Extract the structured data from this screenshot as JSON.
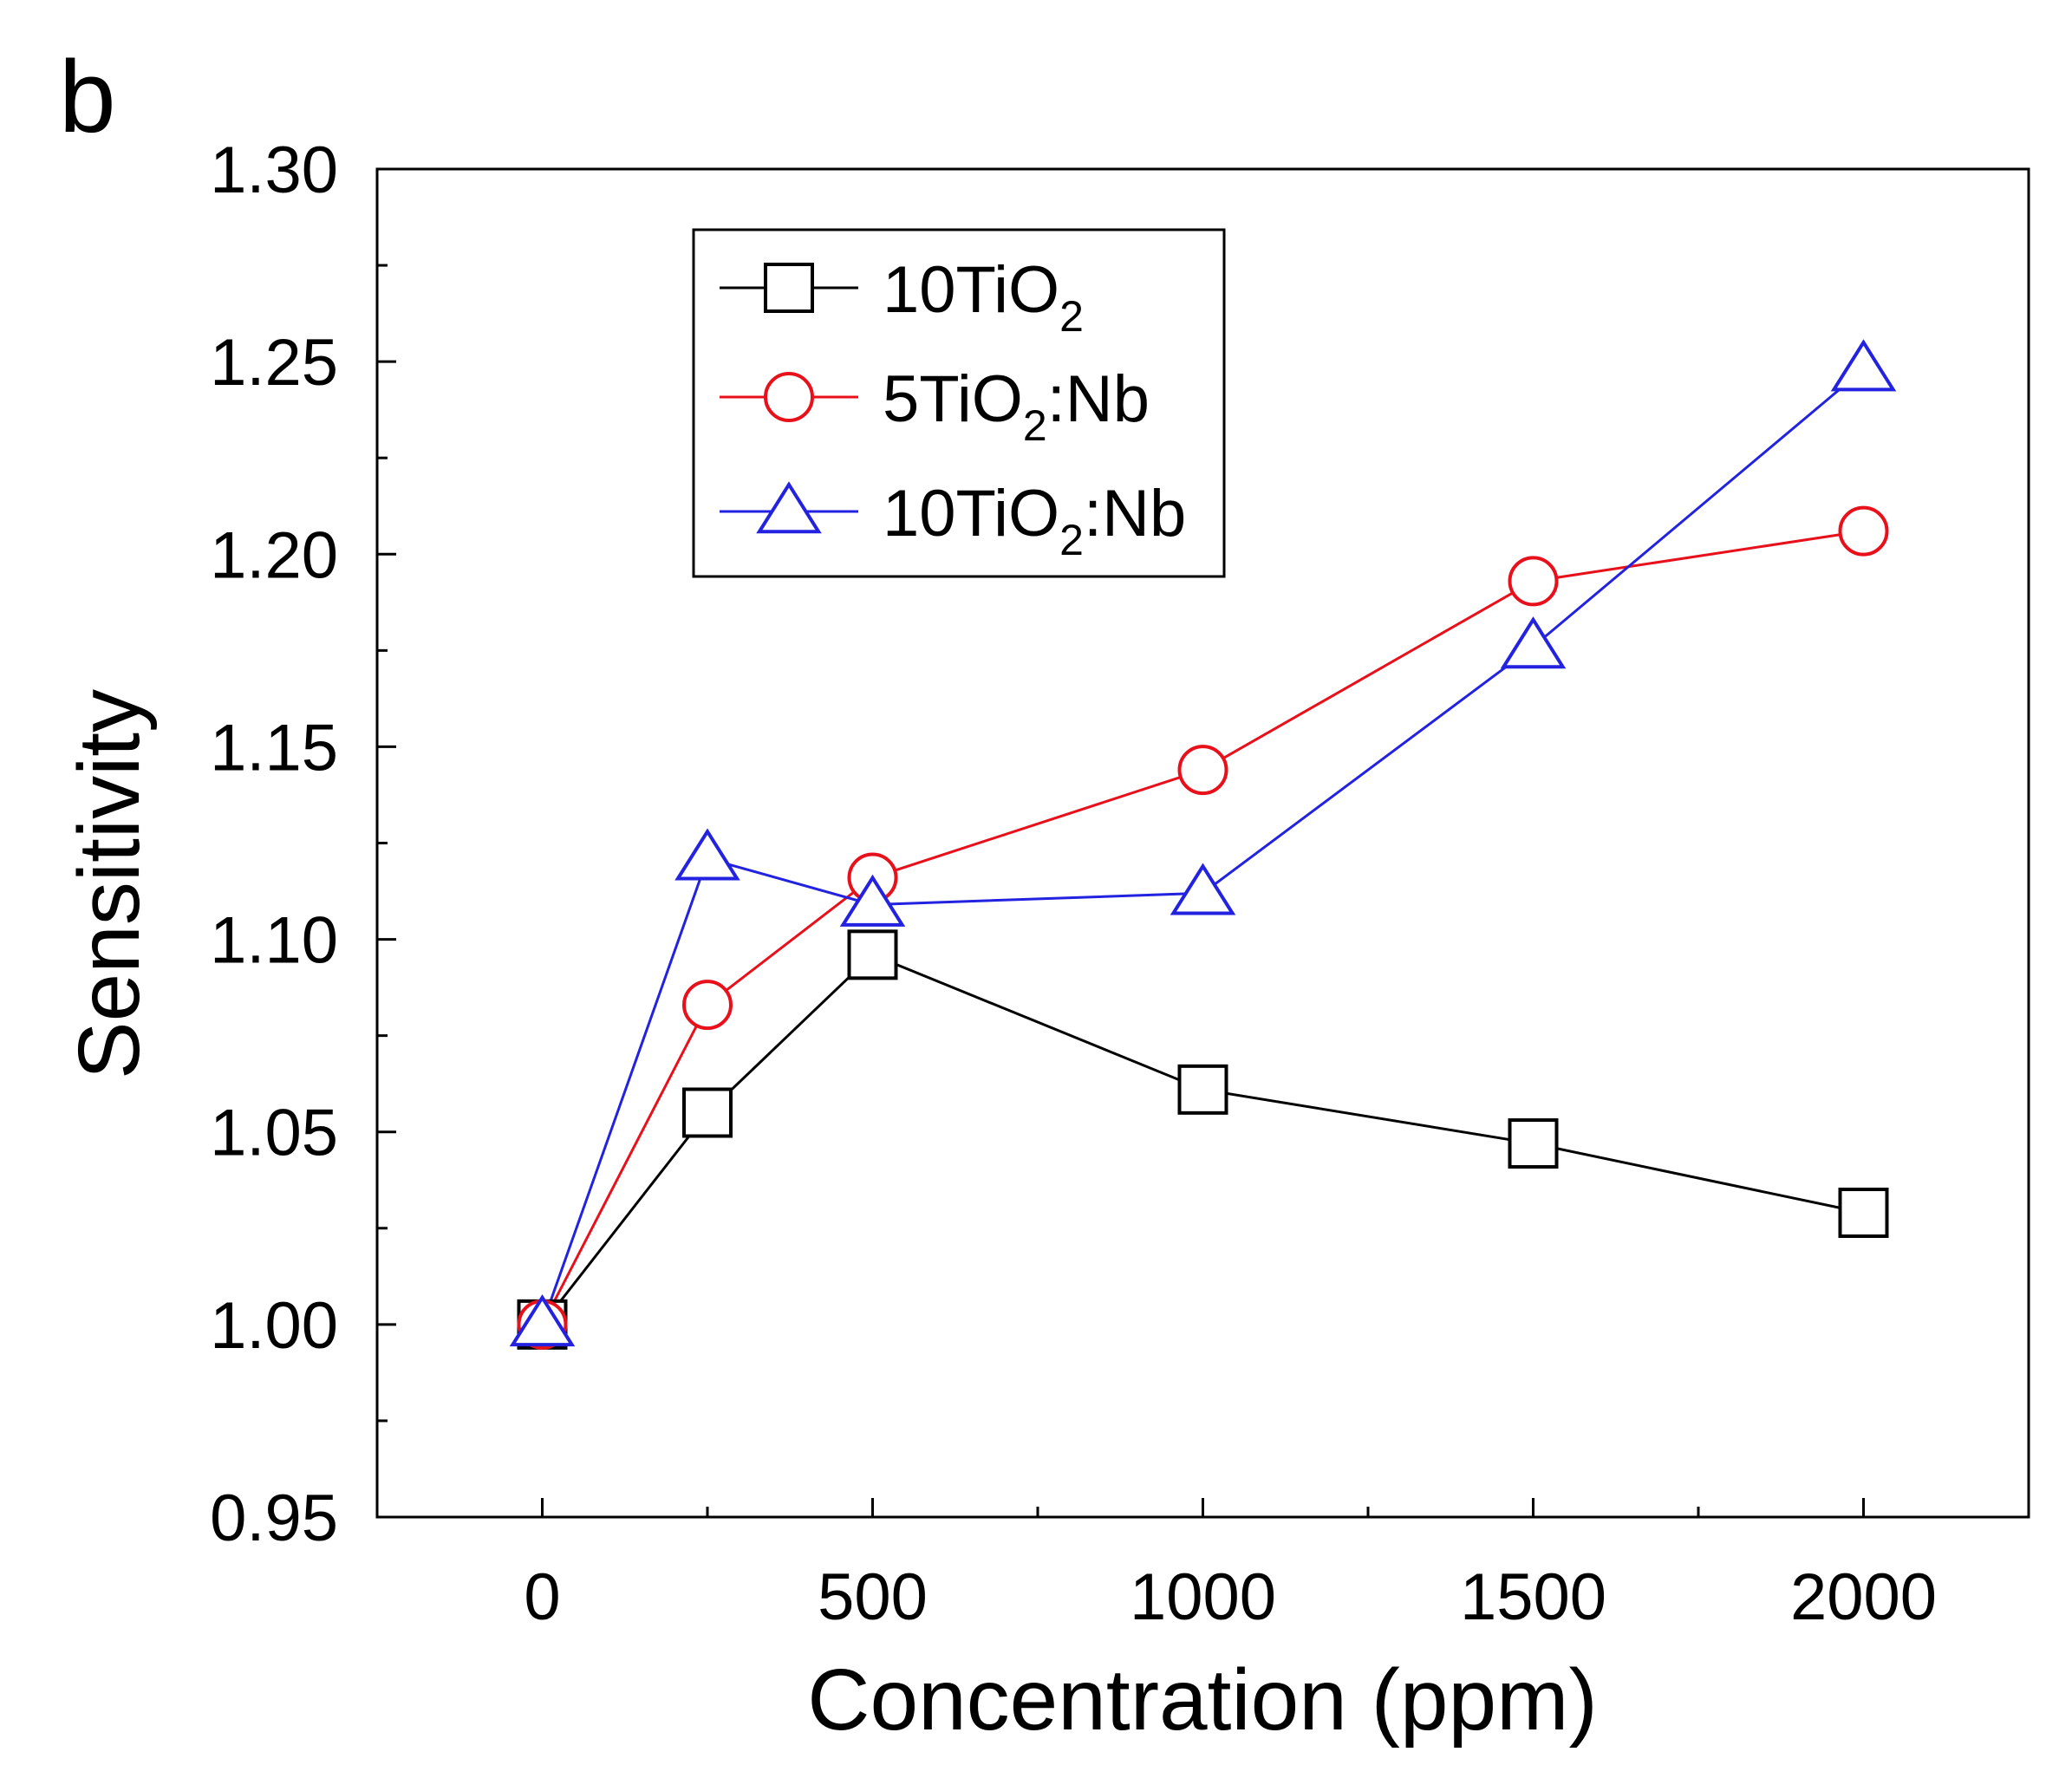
{
  "panel_label": "b",
  "chart_data": {
    "type": "line",
    "xlabel": "Concentration (ppm)",
    "ylabel": "Sensitivity",
    "xlim": [
      -250,
      2250
    ],
    "ylim": [
      0.95,
      1.3
    ],
    "x_ticks": [
      0,
      500,
      1000,
      1500,
      2000
    ],
    "x_tick_labels": [
      "0",
      "500",
      "1000",
      "1500",
      "2000"
    ],
    "x_minor_ticks": [
      250,
      750,
      1250,
      1750
    ],
    "y_ticks": [
      0.95,
      1.0,
      1.05,
      1.1,
      1.15,
      1.2,
      1.25,
      1.3
    ],
    "y_tick_labels": [
      "0.95",
      "1.00",
      "1.05",
      "1.10",
      "1.15",
      "1.20",
      "1.25",
      "1.30"
    ],
    "y_minor_ticks": [
      0.975,
      1.025,
      1.075,
      1.125,
      1.175,
      1.225,
      1.275
    ],
    "x": [
      0,
      250,
      500,
      1000,
      1500,
      2000
    ],
    "legend_position": "top-left",
    "series": [
      {
        "name_main": "10TiO",
        "name_sub": "2",
        "name_suffix": "",
        "color": "#000000",
        "marker": "square",
        "values": [
          1.0,
          1.055,
          1.096,
          1.061,
          1.047,
          1.029
        ]
      },
      {
        "name_main": "5TiO",
        "name_sub": "2",
        "name_suffix": ":Nb",
        "color": "#e8101a",
        "marker": "circle",
        "values": [
          1.0,
          1.083,
          1.116,
          1.144,
          1.193,
          1.206
        ]
      },
      {
        "name_main": "10TiO",
        "name_sub": "2",
        "name_suffix": ":Nb",
        "color": "#2222e0",
        "marker": "triangle",
        "values": [
          1.0,
          1.121,
          1.109,
          1.112,
          1.176,
          1.248
        ]
      }
    ]
  }
}
